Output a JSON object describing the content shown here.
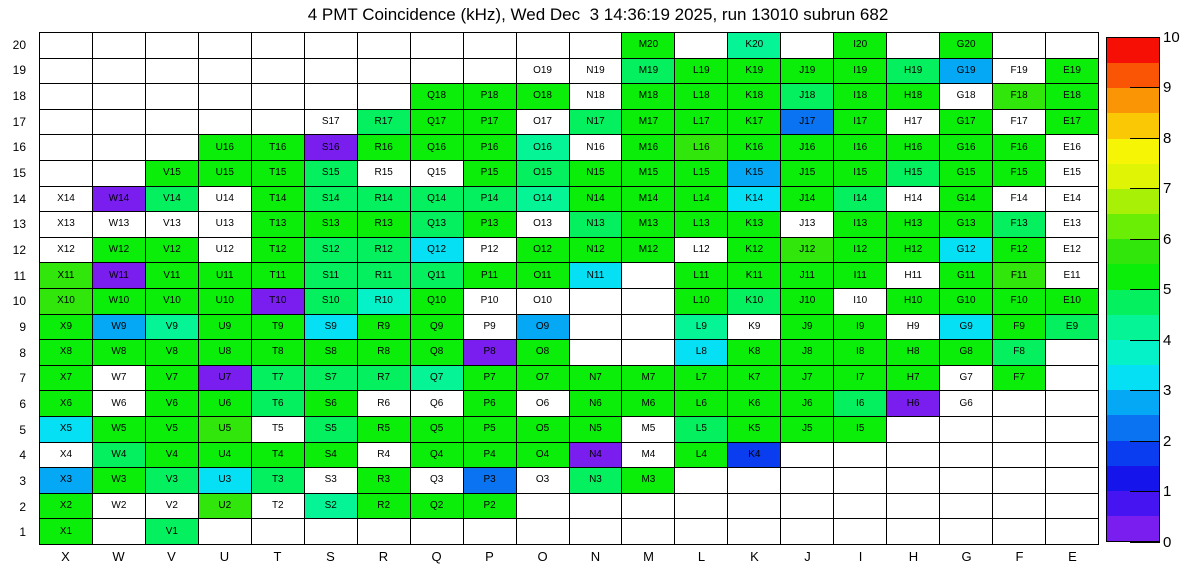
{
  "title": "4 PMT Coincidence (kHz), Wed Dec  3 14:36:19 2025, run 13010 subrun 682",
  "colorbar": {
    "min": 0,
    "max": 10,
    "ticks": [
      0,
      1,
      2,
      3,
      4,
      5,
      6,
      7,
      8,
      9,
      10
    ],
    "palette": [
      "#7A1EF0",
      "#4614F0",
      "#1414EB",
      "#0A3CF0",
      "#0A73F2",
      "#05A8F5",
      "#05E0F5",
      "#05F2C8",
      "#05F596",
      "#05F05F",
      "#0AEE0A",
      "#30E60A",
      "#6AEE05",
      "#A8F005",
      "#E0F505",
      "#F5F505",
      "#FAC805",
      "#FA9605",
      "#FA5505",
      "#F50F05"
    ]
  },
  "chart_data": {
    "type": "heatmap",
    "title": "4 PMT Coincidence (kHz), Wed Dec  3 14:36:19 2025, run 13010 subrun 682",
    "value_unit": "kHz",
    "value_range": [
      0,
      10
    ],
    "x_categories": [
      "X",
      "W",
      "V",
      "U",
      "T",
      "S",
      "R",
      "Q",
      "P",
      "O",
      "N",
      "M",
      "L",
      "K",
      "J",
      "I",
      "H",
      "G",
      "F",
      "E"
    ],
    "y_categories": [
      1,
      2,
      3,
      4,
      5,
      6,
      7,
      8,
      9,
      10,
      11,
      12,
      13,
      14,
      15,
      16,
      17,
      18,
      19,
      20
    ],
    "legend_position": "right",
    "grid": true,
    "cells": [
      [
        "M20",
        5.25
      ],
      [
        "K20",
        4.25
      ],
      [
        "I20",
        5.25
      ],
      [
        "G20",
        5.25
      ],
      [
        "O19",
        null
      ],
      [
        "N19",
        null
      ],
      [
        "M19",
        4.75
      ],
      [
        "L19",
        5.25
      ],
      [
        "K19",
        5.25
      ],
      [
        "J19",
        5.25
      ],
      [
        "I19",
        5.25
      ],
      [
        "H19",
        4.75
      ],
      [
        "G19",
        2.75
      ],
      [
        "F19",
        null
      ],
      [
        "E19",
        5.25
      ],
      [
        "Q18",
        5.25
      ],
      [
        "P18",
        5.25
      ],
      [
        "O18",
        5.25
      ],
      [
        "N18",
        null
      ],
      [
        "M18",
        5.25
      ],
      [
        "L18",
        5.25
      ],
      [
        "K18",
        5.25
      ],
      [
        "J18",
        4.75
      ],
      [
        "I18",
        5.25
      ],
      [
        "H18",
        5.25
      ],
      [
        "G18",
        null
      ],
      [
        "F18",
        5.75
      ],
      [
        "E18",
        5.25
      ],
      [
        "S17",
        null
      ],
      [
        "R17",
        4.75
      ],
      [
        "Q17",
        5.25
      ],
      [
        "P17",
        5.25
      ],
      [
        "O17",
        null
      ],
      [
        "N17",
        4.75
      ],
      [
        "M17",
        5.25
      ],
      [
        "L17",
        5.25
      ],
      [
        "K17",
        5.25
      ],
      [
        "J17",
        2.25
      ],
      [
        "I17",
        5.25
      ],
      [
        "H17",
        null
      ],
      [
        "G17",
        5.25
      ],
      [
        "F17",
        null
      ],
      [
        "E17",
        5.25
      ],
      [
        "U16",
        5.25
      ],
      [
        "T16",
        5.25
      ],
      [
        "S16",
        0.25
      ],
      [
        "R16",
        5.25
      ],
      [
        "Q16",
        5.25
      ],
      [
        "P16",
        5.25
      ],
      [
        "O16",
        4.25
      ],
      [
        "N16",
        null
      ],
      [
        "M16",
        5.25
      ],
      [
        "L16",
        5.75
      ],
      [
        "K16",
        5.25
      ],
      [
        "J16",
        5.25
      ],
      [
        "I16",
        5.25
      ],
      [
        "H16",
        5.25
      ],
      [
        "G16",
        5.25
      ],
      [
        "F16",
        5.25
      ],
      [
        "E16",
        null
      ],
      [
        "V15",
        5.25
      ],
      [
        "U15",
        5.25
      ],
      [
        "T15",
        5.25
      ],
      [
        "S15",
        4.75
      ],
      [
        "R15",
        null
      ],
      [
        "Q15",
        null
      ],
      [
        "P15",
        5.25
      ],
      [
        "O15",
        4.75
      ],
      [
        "N15",
        5.25
      ],
      [
        "M15",
        5.25
      ],
      [
        "L15",
        5.25
      ],
      [
        "K15",
        2.75
      ],
      [
        "J15",
        5.25
      ],
      [
        "I15",
        5.25
      ],
      [
        "H15",
        4.75
      ],
      [
        "G15",
        5.25
      ],
      [
        "F15",
        5.25
      ],
      [
        "E15",
        null
      ],
      [
        "X14",
        null
      ],
      [
        "W14",
        0.25
      ],
      [
        "V14",
        4.75
      ],
      [
        "U14",
        null
      ],
      [
        "T14",
        5.25
      ],
      [
        "S14",
        4.75
      ],
      [
        "R14",
        4.75
      ],
      [
        "Q14",
        4.75
      ],
      [
        "P14",
        4.75
      ],
      [
        "O14",
        4.25
      ],
      [
        "N14",
        5.25
      ],
      [
        "M14",
        5.25
      ],
      [
        "L14",
        5.25
      ],
      [
        "K14",
        3.25
      ],
      [
        "J14",
        5.25
      ],
      [
        "I14",
        4.75
      ],
      [
        "H14",
        null
      ],
      [
        "G14",
        5.25
      ],
      [
        "F14",
        null
      ],
      [
        "E14",
        null
      ],
      [
        "X13",
        null
      ],
      [
        "W13",
        null
      ],
      [
        "V13",
        null
      ],
      [
        "U13",
        null
      ],
      [
        "T13",
        5.25
      ],
      [
        "S13",
        5.25
      ],
      [
        "R13",
        5.25
      ],
      [
        "Q13",
        4.75
      ],
      [
        "P13",
        5.25
      ],
      [
        "O13",
        null
      ],
      [
        "N13",
        4.75
      ],
      [
        "M13",
        5.25
      ],
      [
        "L13",
        5.25
      ],
      [
        "K13",
        5.25
      ],
      [
        "J13",
        null
      ],
      [
        "I13",
        5.25
      ],
      [
        "H13",
        5.25
      ],
      [
        "G13",
        5.25
      ],
      [
        "F13",
        4.75
      ],
      [
        "E13",
        null
      ],
      [
        "X12",
        null
      ],
      [
        "W12",
        5.25
      ],
      [
        "V12",
        5.25
      ],
      [
        "U12",
        null
      ],
      [
        "T12",
        5.25
      ],
      [
        "S12",
        4.75
      ],
      [
        "R12",
        4.75
      ],
      [
        "Q12",
        3.25
      ],
      [
        "P12",
        null
      ],
      [
        "O12",
        5.25
      ],
      [
        "N12",
        5.25
      ],
      [
        "M12",
        5.25
      ],
      [
        "L12",
        null
      ],
      [
        "K12",
        5.25
      ],
      [
        "J12",
        5.75
      ],
      [
        "I12",
        5.25
      ],
      [
        "H12",
        5.25
      ],
      [
        "G12",
        3.25
      ],
      [
        "F12",
        5.25
      ],
      [
        "E12",
        null
      ],
      [
        "X11",
        5.75
      ],
      [
        "W11",
        0.25
      ],
      [
        "V11",
        5.25
      ],
      [
        "U11",
        5.25
      ],
      [
        "T11",
        5.25
      ],
      [
        "S11",
        4.75
      ],
      [
        "R11",
        4.75
      ],
      [
        "Q11",
        4.75
      ],
      [
        "P11",
        5.25
      ],
      [
        "O11",
        5.25
      ],
      [
        "N11",
        3.25
      ],
      [
        "L11",
        5.25
      ],
      [
        "K11",
        5.25
      ],
      [
        "J11",
        5.25
      ],
      [
        "I11",
        5.25
      ],
      [
        "H11",
        null
      ],
      [
        "G11",
        5.25
      ],
      [
        "F11",
        5.75
      ],
      [
        "E11",
        null
      ],
      [
        "X10",
        5.75
      ],
      [
        "W10",
        5.25
      ],
      [
        "V10",
        5.25
      ],
      [
        "U10",
        5.25
      ],
      [
        "T10",
        0.25
      ],
      [
        "S10",
        4.75
      ],
      [
        "R10",
        3.75
      ],
      [
        "Q10",
        5.25
      ],
      [
        "P10",
        null
      ],
      [
        "O10",
        null
      ],
      [
        "L10",
        5.25
      ],
      [
        "K10",
        4.75
      ],
      [
        "J10",
        5.25
      ],
      [
        "I10",
        null
      ],
      [
        "H10",
        5.25
      ],
      [
        "G10",
        5.25
      ],
      [
        "F10",
        5.25
      ],
      [
        "E10",
        5.25
      ],
      [
        "X9",
        5.25
      ],
      [
        "W9",
        2.75
      ],
      [
        "V9",
        4.25
      ],
      [
        "U9",
        5.25
      ],
      [
        "T9",
        5.25
      ],
      [
        "S9",
        3.25
      ],
      [
        "R9",
        5.25
      ],
      [
        "Q9",
        5.25
      ],
      [
        "P9",
        null
      ],
      [
        "O9",
        2.75
      ],
      [
        "L9",
        4.25
      ],
      [
        "K9",
        null
      ],
      [
        "J9",
        5.25
      ],
      [
        "I9",
        5.25
      ],
      [
        "H9",
        null
      ],
      [
        "G9",
        3.25
      ],
      [
        "F9",
        5.25
      ],
      [
        "E9",
        4.75
      ],
      [
        "X8",
        5.25
      ],
      [
        "W8",
        5.25
      ],
      [
        "V8",
        5.25
      ],
      [
        "U8",
        5.25
      ],
      [
        "T8",
        5.25
      ],
      [
        "S8",
        5.25
      ],
      [
        "R8",
        5.25
      ],
      [
        "Q8",
        5.25
      ],
      [
        "P8",
        0.25
      ],
      [
        "O8",
        5.25
      ],
      [
        "L8",
        3.25
      ],
      [
        "K8",
        5.25
      ],
      [
        "J8",
        5.25
      ],
      [
        "I8",
        5.25
      ],
      [
        "H8",
        5.25
      ],
      [
        "G8",
        5.25
      ],
      [
        "F8",
        4.75
      ],
      [
        "X7",
        5.25
      ],
      [
        "W7",
        null
      ],
      [
        "V7",
        5.25
      ],
      [
        "U7",
        0.25
      ],
      [
        "T7",
        4.75
      ],
      [
        "S7",
        4.75
      ],
      [
        "R7",
        4.75
      ],
      [
        "Q7",
        4.25
      ],
      [
        "P7",
        5.25
      ],
      [
        "O7",
        5.25
      ],
      [
        "N7",
        5.25
      ],
      [
        "M7",
        5.25
      ],
      [
        "L7",
        5.25
      ],
      [
        "K7",
        5.25
      ],
      [
        "J7",
        5.25
      ],
      [
        "I7",
        5.25
      ],
      [
        "H7",
        5.25
      ],
      [
        "G7",
        null
      ],
      [
        "F7",
        5.25
      ],
      [
        "X6",
        5.25
      ],
      [
        "W6",
        null
      ],
      [
        "V6",
        5.25
      ],
      [
        "U6",
        5.25
      ],
      [
        "T6",
        4.75
      ],
      [
        "S6",
        5.25
      ],
      [
        "R6",
        null
      ],
      [
        "Q6",
        null
      ],
      [
        "P6",
        5.25
      ],
      [
        "O6",
        null
      ],
      [
        "N6",
        5.25
      ],
      [
        "M6",
        5.25
      ],
      [
        "L6",
        5.25
      ],
      [
        "K6",
        5.25
      ],
      [
        "J6",
        5.25
      ],
      [
        "I6",
        4.75
      ],
      [
        "H6",
        0.25
      ],
      [
        "G6",
        null
      ],
      [
        "X5",
        3.25
      ],
      [
        "W5",
        5.25
      ],
      [
        "V5",
        5.25
      ],
      [
        "U5",
        5.75
      ],
      [
        "T5",
        null
      ],
      [
        "S5",
        4.75
      ],
      [
        "R5",
        5.25
      ],
      [
        "Q5",
        5.25
      ],
      [
        "P5",
        5.25
      ],
      [
        "O5",
        5.25
      ],
      [
        "N5",
        5.25
      ],
      [
        "M5",
        null
      ],
      [
        "L5",
        4.75
      ],
      [
        "K5",
        5.25
      ],
      [
        "J5",
        5.25
      ],
      [
        "I5",
        5.25
      ],
      [
        "X4",
        null
      ],
      [
        "W4",
        4.75
      ],
      [
        "V4",
        5.25
      ],
      [
        "U4",
        5.25
      ],
      [
        "T4",
        5.25
      ],
      [
        "S4",
        5.25
      ],
      [
        "R4",
        null
      ],
      [
        "Q4",
        5.25
      ],
      [
        "P4",
        5.25
      ],
      [
        "O4",
        5.25
      ],
      [
        "N4",
        0.25
      ],
      [
        "M4",
        null
      ],
      [
        "L4",
        5.25
      ],
      [
        "K4",
        1.75
      ],
      [
        "X3",
        2.75
      ],
      [
        "W3",
        5.25
      ],
      [
        "V3",
        4.75
      ],
      [
        "U3",
        3.25
      ],
      [
        "T3",
        4.75
      ],
      [
        "S3",
        null
      ],
      [
        "R3",
        5.25
      ],
      [
        "Q3",
        null
      ],
      [
        "P3",
        2.25
      ],
      [
        "O3",
        null
      ],
      [
        "N3",
        4.75
      ],
      [
        "M3",
        5.25
      ],
      [
        "X2",
        5.25
      ],
      [
        "W2",
        null
      ],
      [
        "V2",
        null
      ],
      [
        "U2",
        5.75
      ],
      [
        "T2",
        null
      ],
      [
        "S2",
        4.25
      ],
      [
        "R2",
        5.25
      ],
      [
        "Q2",
        5.25
      ],
      [
        "P2",
        5.25
      ],
      [
        "X1",
        5.25
      ],
      [
        "V1",
        4.75
      ]
    ]
  }
}
